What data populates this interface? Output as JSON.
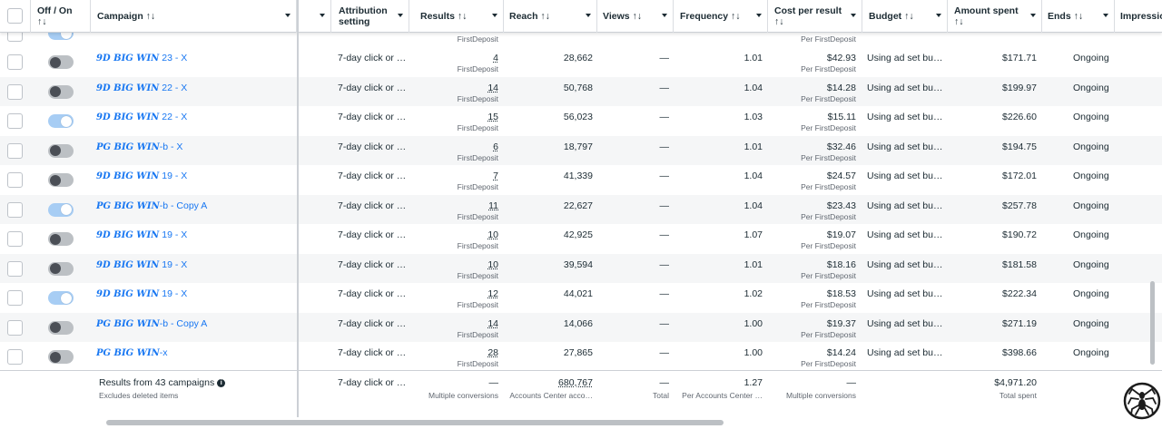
{
  "header": {
    "off_on": "Off / On",
    "sort_arrows": "↑↓",
    "campaign": "Campaign ↑↓",
    "attribution_l1": "Attribution",
    "attribution_l2": "setting",
    "results": "Results ↑↓",
    "reach": "Reach ↑↓",
    "views": "Views ↑↓",
    "frequency": "Frequency ↑↓",
    "cost_per_result": "Cost per result",
    "budget": "Budget ↑↓",
    "amount_spent": "Amount spent",
    "ends": "Ends ↑↓",
    "impressions": "Impressio"
  },
  "partial_row": {
    "result_type": "FirstDeposit",
    "cost_type": "Per FirstDeposit"
  },
  "rows": [
    {
      "toggle": "off",
      "brand": "9D BIG WIN",
      "suffix": " 23 - X",
      "attribution": "7-day click or …",
      "results": "4",
      "result_type": "FirstDeposit",
      "reach": "28,662",
      "views": "—",
      "frequency": "1.01",
      "cost": "$42.93",
      "cost_type": "Per FirstDeposit",
      "budget": "Using ad set bu…",
      "spent": "$171.71",
      "ends": "Ongoing"
    },
    {
      "toggle": "off",
      "brand": "9D BIG WIN",
      "suffix": " 22 - X",
      "attribution": "7-day click or …",
      "results": "14",
      "result_type": "FirstDeposit",
      "reach": "50,768",
      "views": "—",
      "frequency": "1.04",
      "cost": "$14.28",
      "cost_type": "Per FirstDeposit",
      "budget": "Using ad set bu…",
      "spent": "$199.97",
      "ends": "Ongoing"
    },
    {
      "toggle": "on",
      "brand": "9D BIG WIN",
      "suffix": " 22 - X",
      "attribution": "7-day click or …",
      "results": "15",
      "result_type": "FirstDeposit",
      "reach": "56,023",
      "views": "—",
      "frequency": "1.03",
      "cost": "$15.11",
      "cost_type": "Per FirstDeposit",
      "budget": "Using ad set bu…",
      "spent": "$226.60",
      "ends": "Ongoing"
    },
    {
      "toggle": "off",
      "brand": "PG BIG WIN",
      "suffix": "-b - X",
      "attribution": "7-day click or …",
      "results": "6",
      "result_type": "FirstDeposit",
      "reach": "18,797",
      "views": "—",
      "frequency": "1.01",
      "cost": "$32.46",
      "cost_type": "Per FirstDeposit",
      "budget": "Using ad set bu…",
      "spent": "$194.75",
      "ends": "Ongoing"
    },
    {
      "toggle": "off",
      "brand": "9D BIG WIN",
      "suffix": " 19 - X",
      "attribution": "7-day click or …",
      "results": "7",
      "result_type": "FirstDeposit",
      "reach": "41,339",
      "views": "—",
      "frequency": "1.04",
      "cost": "$24.57",
      "cost_type": "Per FirstDeposit",
      "budget": "Using ad set bu…",
      "spent": "$172.01",
      "ends": "Ongoing"
    },
    {
      "toggle": "on",
      "brand": "PG BIG WIN",
      "suffix": "-b - Copy A",
      "attribution": "7-day click or …",
      "results": "11",
      "result_type": "FirstDeposit",
      "reach": "22,627",
      "views": "—",
      "frequency": "1.04",
      "cost": "$23.43",
      "cost_type": "Per FirstDeposit",
      "budget": "Using ad set bu…",
      "spent": "$257.78",
      "ends": "Ongoing"
    },
    {
      "toggle": "off",
      "brand": "9D BIG WIN",
      "suffix": " 19 - X",
      "attribution": "7-day click or …",
      "results": "10",
      "result_type": "FirstDeposit",
      "reach": "42,925",
      "views": "—",
      "frequency": "1.07",
      "cost": "$19.07",
      "cost_type": "Per FirstDeposit",
      "budget": "Using ad set bu…",
      "spent": "$190.72",
      "ends": "Ongoing"
    },
    {
      "toggle": "off",
      "brand": "9D BIG WIN",
      "suffix": " 19 - X",
      "attribution": "7-day click or …",
      "results": "10",
      "result_type": "FirstDeposit",
      "reach": "39,594",
      "views": "—",
      "frequency": "1.01",
      "cost": "$18.16",
      "cost_type": "Per FirstDeposit",
      "budget": "Using ad set bu…",
      "spent": "$181.58",
      "ends": "Ongoing"
    },
    {
      "toggle": "on",
      "brand": "9D BIG WIN",
      "suffix": " 19 - X",
      "attribution": "7-day click or …",
      "results": "12",
      "result_type": "FirstDeposit",
      "reach": "44,021",
      "views": "—",
      "frequency": "1.02",
      "cost": "$18.53",
      "cost_type": "Per FirstDeposit",
      "budget": "Using ad set bu…",
      "spent": "$222.34",
      "ends": "Ongoing"
    },
    {
      "toggle": "off",
      "brand": "PG BIG WIN",
      "suffix": "-b - Copy A",
      "attribution": "7-day click or …",
      "results": "14",
      "result_type": "FirstDeposit",
      "reach": "14,066",
      "views": "—",
      "frequency": "1.00",
      "cost": "$19.37",
      "cost_type": "Per FirstDeposit",
      "budget": "Using ad set bu…",
      "spent": "$271.19",
      "ends": "Ongoing"
    },
    {
      "toggle": "off",
      "brand": "PG BIG WIN",
      "suffix": "-x",
      "attribution": "7-day click or …",
      "results": "28",
      "result_type": "FirstDeposit",
      "reach": "27,865",
      "views": "—",
      "frequency": "1.00",
      "cost": "$14.24",
      "cost_type": "Per FirstDeposit",
      "budget": "Using ad set bu…",
      "spent": "$398.66",
      "ends": "Ongoing"
    }
  ],
  "footer": {
    "results_from": "Results from 43 campaigns",
    "excludes": "Excludes deleted items",
    "attribution": "7-day click or …",
    "results": "—",
    "results_sub": "Multiple conversions",
    "reach": "680,767",
    "reach_sub": "Accounts Center acco…",
    "views": "—",
    "views_sub": "Total",
    "frequency": "1.27",
    "frequency_sub": "Per Accounts Center …",
    "cost": "—",
    "cost_sub": "Multiple conversions",
    "spent": "$4,971.20",
    "spent_sub": "Total spent"
  },
  "colors": {
    "link": "#1877f2",
    "toggle_on": "#a7cdf4",
    "toggle_off": "#bcc0c4"
  },
  "icons": {
    "info": "info-icon",
    "corner_logo": "spider-logo-icon"
  }
}
